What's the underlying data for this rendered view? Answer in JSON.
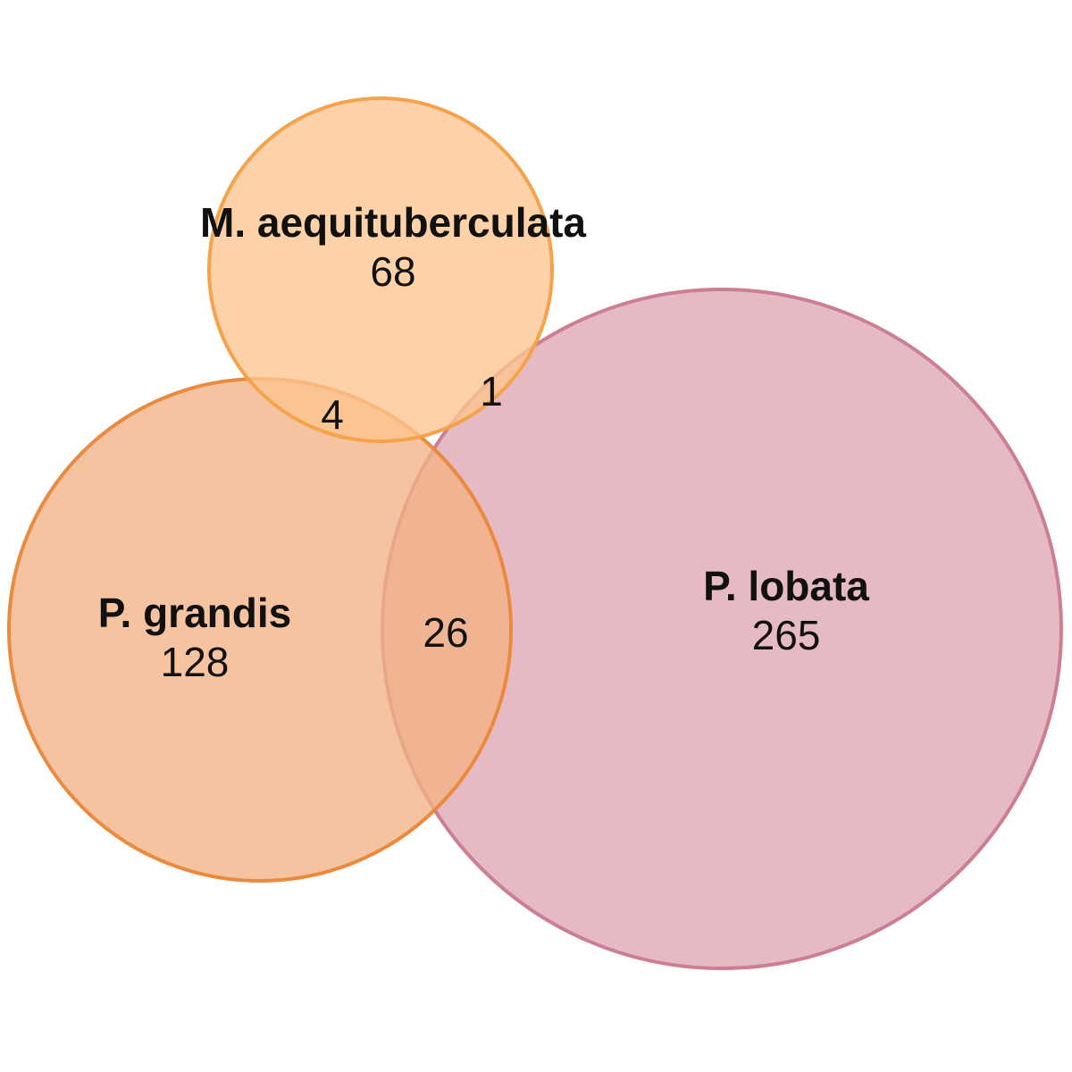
{
  "sets": {
    "m_aequituberculata": {
      "name": "M. aequituberculata",
      "unique_count": "68",
      "fill_color": "#fcc58f",
      "stroke_color": "#f5a24b"
    },
    "p_grandis": {
      "name": "P. grandis",
      "unique_count": "128",
      "fill_color": "#f2b285",
      "stroke_color": "#ea8a3f"
    },
    "p_lobata": {
      "name": "P. lobata",
      "unique_count": "265",
      "fill_color": "#e5b6bf",
      "stroke_color": "#cc7f92"
    }
  },
  "intersections": {
    "m_aequituberculata_and_p_grandis": "4",
    "m_aequituberculata_and_p_lobata": "1",
    "p_grandis_and_p_lobata": "26"
  }
}
